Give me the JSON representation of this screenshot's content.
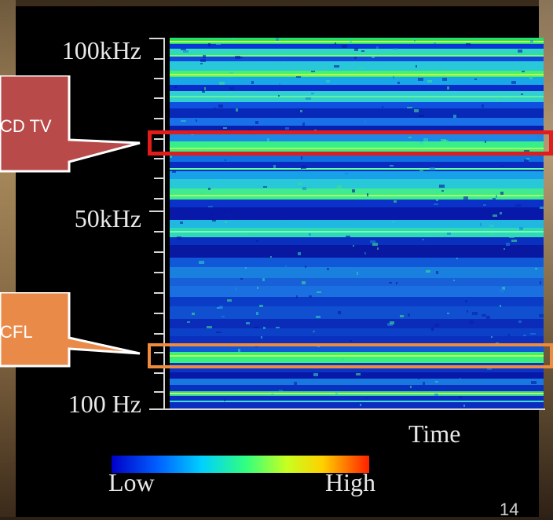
{
  "chart_data": {
    "type": "heatmap",
    "title": "",
    "xlabel": "Time",
    "ylabel": "",
    "y_tick_labels": [
      "100kHz",
      "50kHz",
      "100 Hz"
    ],
    "colorbar": {
      "min_label": "Low",
      "max_label": "High",
      "colors": [
        "#0000c8",
        "#0060ff",
        "#00d0ff",
        "#30ff80",
        "#c8ff20",
        "#ffd000",
        "#ff2000"
      ]
    },
    "annotations": [
      {
        "label": "CD TV",
        "color": "#e21b1b",
        "callout_color": "#b94a4a"
      },
      {
        "label": "CFL",
        "color": "#f08a3c",
        "callout_color": "#e98a49"
      }
    ]
  },
  "slide": {
    "page_number": "14"
  }
}
